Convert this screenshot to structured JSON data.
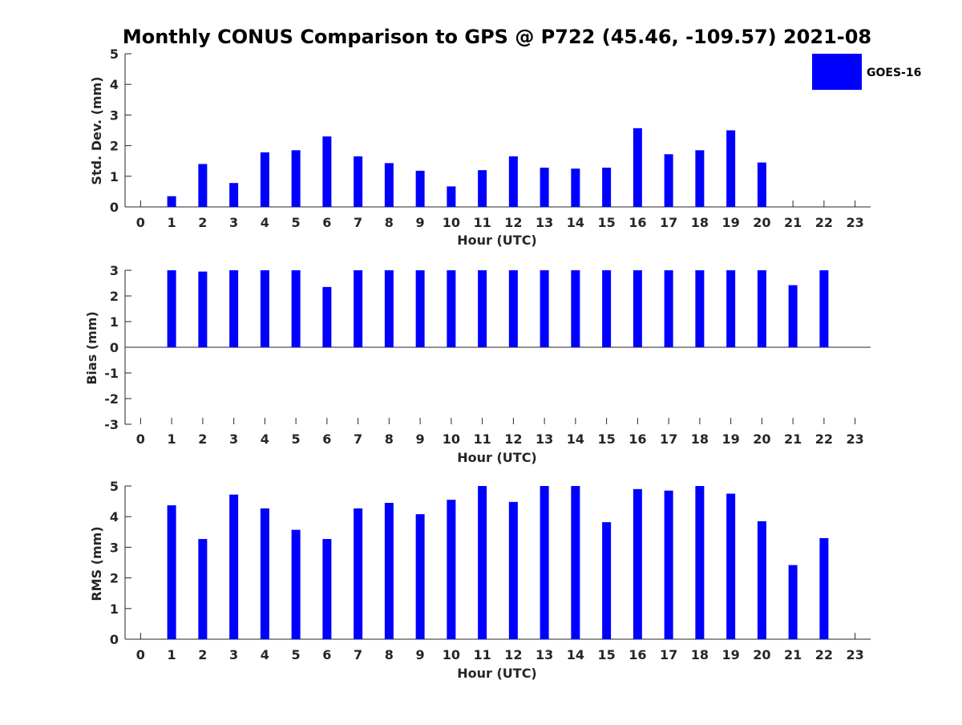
{
  "figure": {
    "title": "Monthly CONUS Comparison to GPS @ P722 (45.46, -109.57) 2021-08"
  },
  "legend": {
    "label": "GOES-16",
    "color": "#0000ff"
  },
  "chart_data": [
    {
      "type": "bar",
      "title": "",
      "xlabel": "Hour (UTC)",
      "ylabel": "Std. Dev. (mm)",
      "xlim": [
        -0.5,
        23.5
      ],
      "ylim": [
        0,
        5
      ],
      "xticks": [
        0,
        1,
        2,
        3,
        4,
        5,
        6,
        7,
        8,
        9,
        10,
        11,
        12,
        13,
        14,
        15,
        16,
        17,
        18,
        19,
        20,
        21,
        22,
        23
      ],
      "yticks": [
        0,
        1,
        2,
        3,
        4,
        5
      ],
      "grid": false,
      "legend_position": "top-right",
      "series": [
        {
          "name": "GOES-16",
          "color": "#0000ff",
          "values": [
            null,
            0.35,
            1.4,
            0.78,
            1.78,
            1.85,
            2.3,
            1.65,
            1.43,
            1.18,
            0.67,
            1.2,
            1.65,
            1.28,
            1.25,
            1.28,
            2.57,
            1.72,
            1.85,
            2.5,
            1.45,
            null,
            null,
            null
          ]
        }
      ]
    },
    {
      "type": "bar",
      "title": "",
      "xlabel": "Hour (UTC)",
      "ylabel": "Bias (mm)",
      "xlim": [
        -0.5,
        23.5
      ],
      "ylim": [
        -3,
        3
      ],
      "xticks": [
        0,
        1,
        2,
        3,
        4,
        5,
        6,
        7,
        8,
        9,
        10,
        11,
        12,
        13,
        14,
        15,
        16,
        17,
        18,
        19,
        20,
        21,
        22,
        23
      ],
      "yticks": [
        -3,
        -2,
        -1,
        0,
        1,
        2,
        3
      ],
      "grid": false,
      "series": [
        {
          "name": "GOES-16",
          "color": "#0000ff",
          "values": [
            null,
            3.0,
            2.95,
            3.0,
            3.0,
            3.0,
            2.35,
            3.0,
            3.0,
            3.0,
            3.0,
            3.0,
            3.0,
            3.0,
            3.0,
            3.0,
            3.0,
            3.0,
            3.0,
            3.0,
            3.0,
            2.42,
            3.0,
            null
          ]
        }
      ]
    },
    {
      "type": "bar",
      "title": "",
      "xlabel": "Hour (UTC)",
      "ylabel": "RMS (mm)",
      "xlim": [
        -0.5,
        23.5
      ],
      "ylim": [
        0,
        5
      ],
      "xticks": [
        0,
        1,
        2,
        3,
        4,
        5,
        6,
        7,
        8,
        9,
        10,
        11,
        12,
        13,
        14,
        15,
        16,
        17,
        18,
        19,
        20,
        21,
        22,
        23
      ],
      "yticks": [
        0,
        1,
        2,
        3,
        4,
        5
      ],
      "grid": false,
      "series": [
        {
          "name": "GOES-16",
          "color": "#0000ff",
          "values": [
            null,
            4.37,
            3.27,
            4.72,
            4.27,
            3.57,
            3.27,
            4.27,
            4.45,
            4.08,
            4.55,
            5.0,
            4.48,
            5.0,
            5.0,
            3.82,
            4.9,
            4.85,
            5.0,
            4.75,
            3.85,
            2.42,
            3.3,
            null
          ]
        }
      ]
    }
  ]
}
